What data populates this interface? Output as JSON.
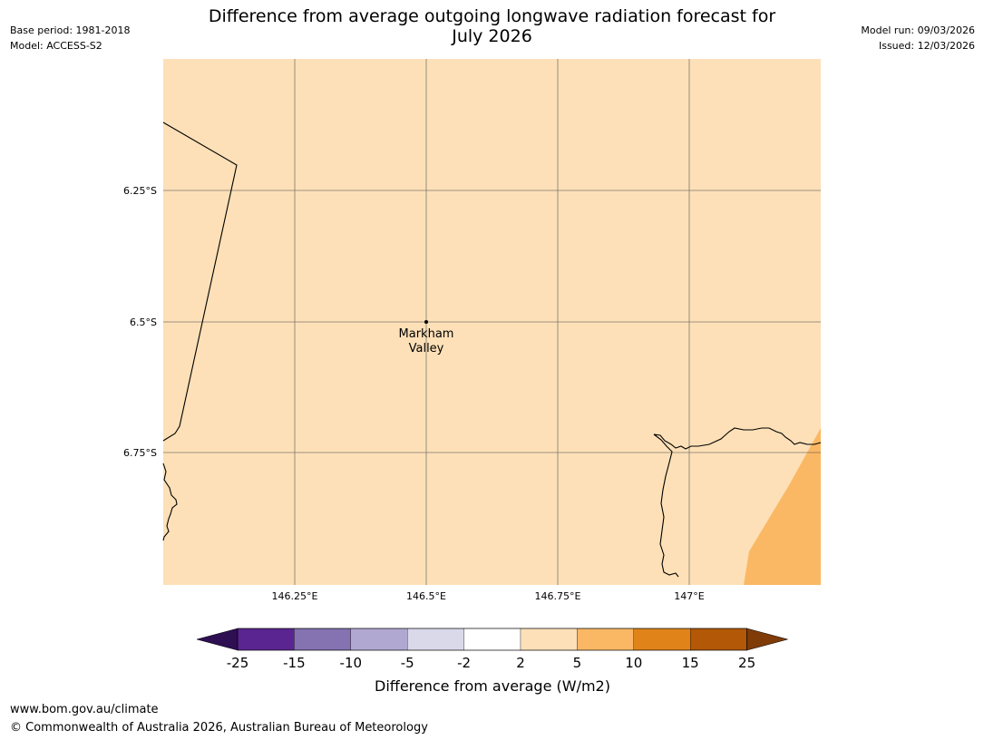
{
  "header": {
    "title_line1": "Difference from average outgoing longwave radiation forecast for",
    "title_line2": "July 2026",
    "base_period": "Base period: 1981-2018",
    "model": "Model: ACCESS-S2",
    "model_run": "Model run: 09/03/2026",
    "issued": "Issued: 12/03/2026"
  },
  "map": {
    "lat_labels": [
      "6.25°S",
      "6.5°S",
      "6.75°S"
    ],
    "lon_labels": [
      "146.25°E",
      "146.5°E",
      "146.75°E",
      "147°E"
    ],
    "place": {
      "name_line1": "Markham",
      "name_line2": "Valley"
    },
    "colors": {
      "base_fill": "#fde0b7",
      "anomaly_fill": "#fbb864",
      "gridline": "#555555",
      "coastline": "#000000"
    }
  },
  "colorbar": {
    "label": "Difference from average (W/m2)",
    "ticks": [
      "-25",
      "-15",
      "-10",
      "-5",
      "-2",
      "2",
      "5",
      "10",
      "15",
      "25"
    ],
    "colors": [
      "#2d0f52",
      "#5a2590",
      "#8472b1",
      "#b1a8d1",
      "#d9d9ea",
      "#ffffff",
      "#fde0b7",
      "#fbb864",
      "#e08419",
      "#b35807",
      "#7f3b08"
    ]
  },
  "footer": {
    "url": "www.bom.gov.au/climate",
    "copyright": "© Commonwealth of Australia 2026, Australian Bureau of Meteorology"
  }
}
